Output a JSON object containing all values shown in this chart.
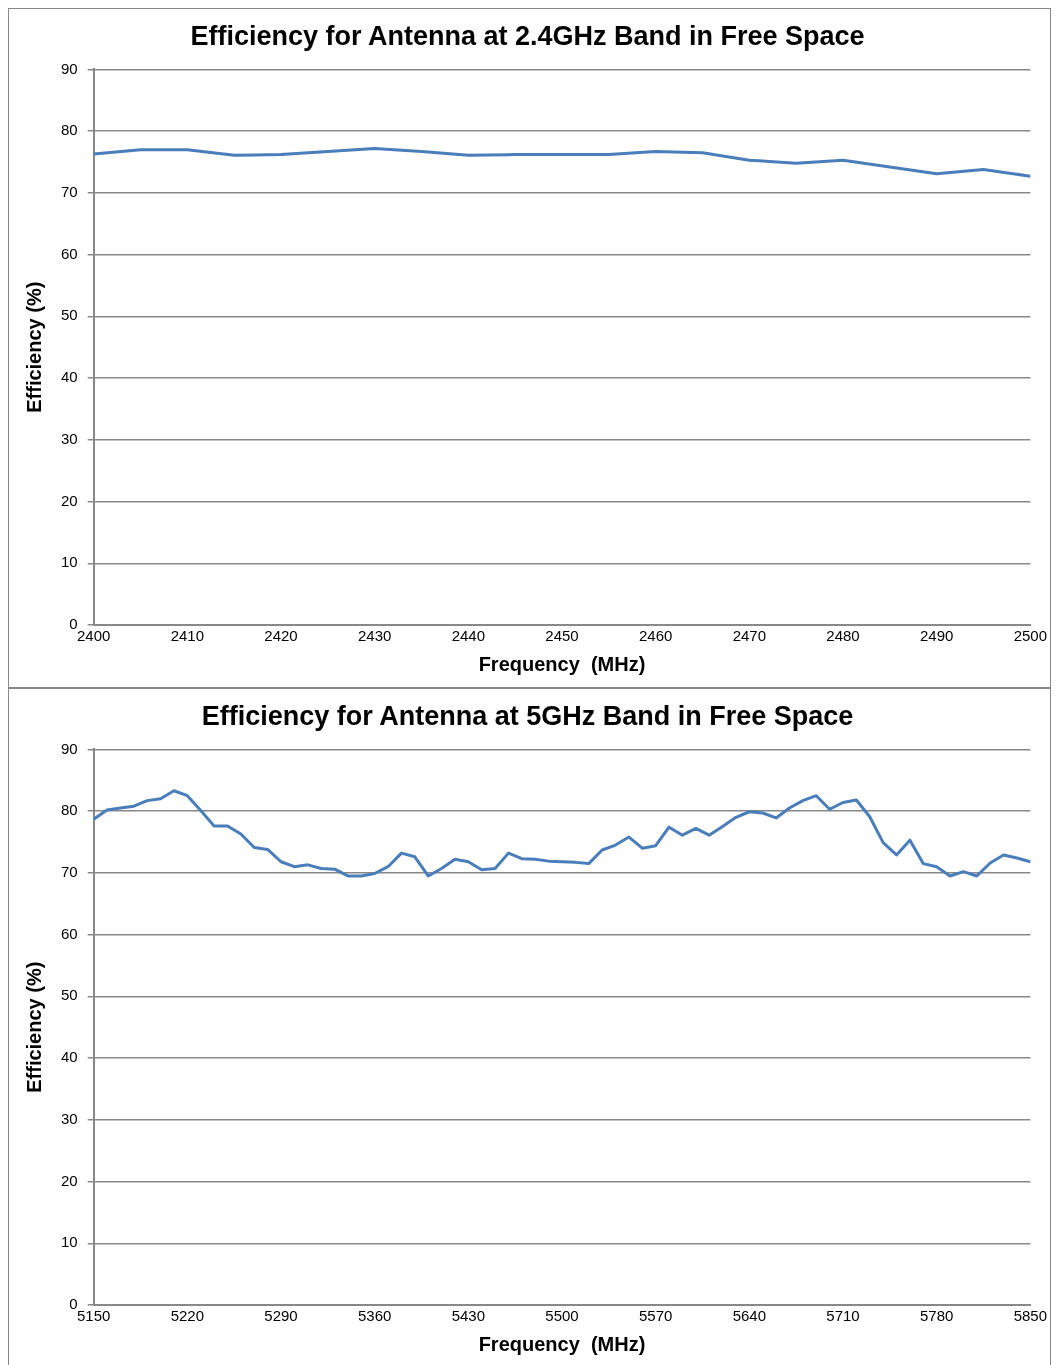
{
  "chart_data": [
    {
      "type": "line",
      "title": "Efficiency for Antenna at 2.4GHz Band in Free Space",
      "xlabel": "Frequency  (MHz)",
      "ylabel": "Efficiency (%)",
      "x": [
        2400,
        2405,
        2410,
        2415,
        2420,
        2425,
        2430,
        2435,
        2440,
        2445,
        2450,
        2455,
        2460,
        2465,
        2470,
        2475,
        2480,
        2485,
        2490,
        2495,
        2500
      ],
      "series": [
        {
          "color": "#4a7ebb",
          "values": [
            76.3,
            77.0,
            77.0,
            76.1,
            76.2,
            76.7,
            77.2,
            76.7,
            76.1,
            76.2,
            76.2,
            76.2,
            76.7,
            76.5,
            75.3,
            74.8,
            75.3,
            74.2,
            73.1,
            73.8,
            72.7
          ]
        }
      ],
      "xlim": [
        2400,
        2500
      ],
      "xticks": [
        2400,
        2410,
        2420,
        2430,
        2440,
        2450,
        2460,
        2470,
        2480,
        2490,
        2500
      ],
      "ylim": [
        0,
        90
      ],
      "yticks": [
        0,
        10,
        20,
        30,
        40,
        50,
        60,
        70,
        80,
        90
      ],
      "grid": "y",
      "marker": "none",
      "line_style": "solid"
    },
    {
      "type": "line",
      "title": "Efficiency for Antenna at 5GHz Band in Free Space",
      "xlabel": "Frequency  (MHz)",
      "ylabel": "Efficiency (%)",
      "x": [
        5150,
        5160,
        5170,
        5180,
        5190,
        5200,
        5210,
        5220,
        5230,
        5240,
        5250,
        5260,
        5270,
        5280,
        5290,
        5300,
        5310,
        5320,
        5330,
        5340,
        5350,
        5360,
        5370,
        5380,
        5390,
        5400,
        5410,
        5420,
        5430,
        5440,
        5450,
        5460,
        5470,
        5480,
        5490,
        5500,
        5510,
        5520,
        5530,
        5540,
        5550,
        5560,
        5570,
        5580,
        5590,
        5600,
        5610,
        5620,
        5630,
        5640,
        5650,
        5660,
        5670,
        5680,
        5690,
        5700,
        5710,
        5720,
        5730,
        5740,
        5750,
        5760,
        5770,
        5780,
        5790,
        5800,
        5810,
        5820,
        5830,
        5840,
        5850
      ],
      "series": [
        {
          "color": "#4a7ebb",
          "values": [
            78.7,
            80.2,
            80.5,
            80.8,
            81.7,
            82.0,
            83.3,
            82.5,
            80.1,
            77.6,
            77.6,
            76.3,
            74.1,
            73.8,
            71.8,
            71.0,
            71.3,
            70.7,
            70.6,
            69.5,
            69.5,
            69.9,
            71.0,
            73.2,
            72.6,
            69.5,
            70.7,
            72.2,
            71.8,
            70.5,
            70.7,
            73.2,
            72.3,
            72.2,
            71.9,
            71.8,
            71.7,
            71.5,
            73.7,
            74.5,
            75.8,
            74.0,
            74.4,
            77.4,
            76.1,
            77.2,
            76.1,
            77.5,
            79.0,
            79.9,
            79.7,
            78.9,
            80.5,
            81.7,
            82.5,
            80.3,
            81.4,
            81.8,
            79.1,
            74.9,
            72.9,
            75.3,
            71.5,
            71.0,
            69.5,
            70.2,
            69.5,
            71.6,
            72.9,
            72.4,
            71.8
          ]
        }
      ],
      "xlim": [
        5150,
        5850
      ],
      "xticks": [
        5150,
        5220,
        5290,
        5360,
        5430,
        5500,
        5570,
        5640,
        5710,
        5780,
        5850
      ],
      "ylim": [
        0,
        90
      ],
      "yticks": [
        0,
        10,
        20,
        30,
        40,
        50,
        60,
        70,
        80,
        90
      ],
      "grid": "y",
      "marker": "none",
      "line_style": "solid"
    }
  ]
}
